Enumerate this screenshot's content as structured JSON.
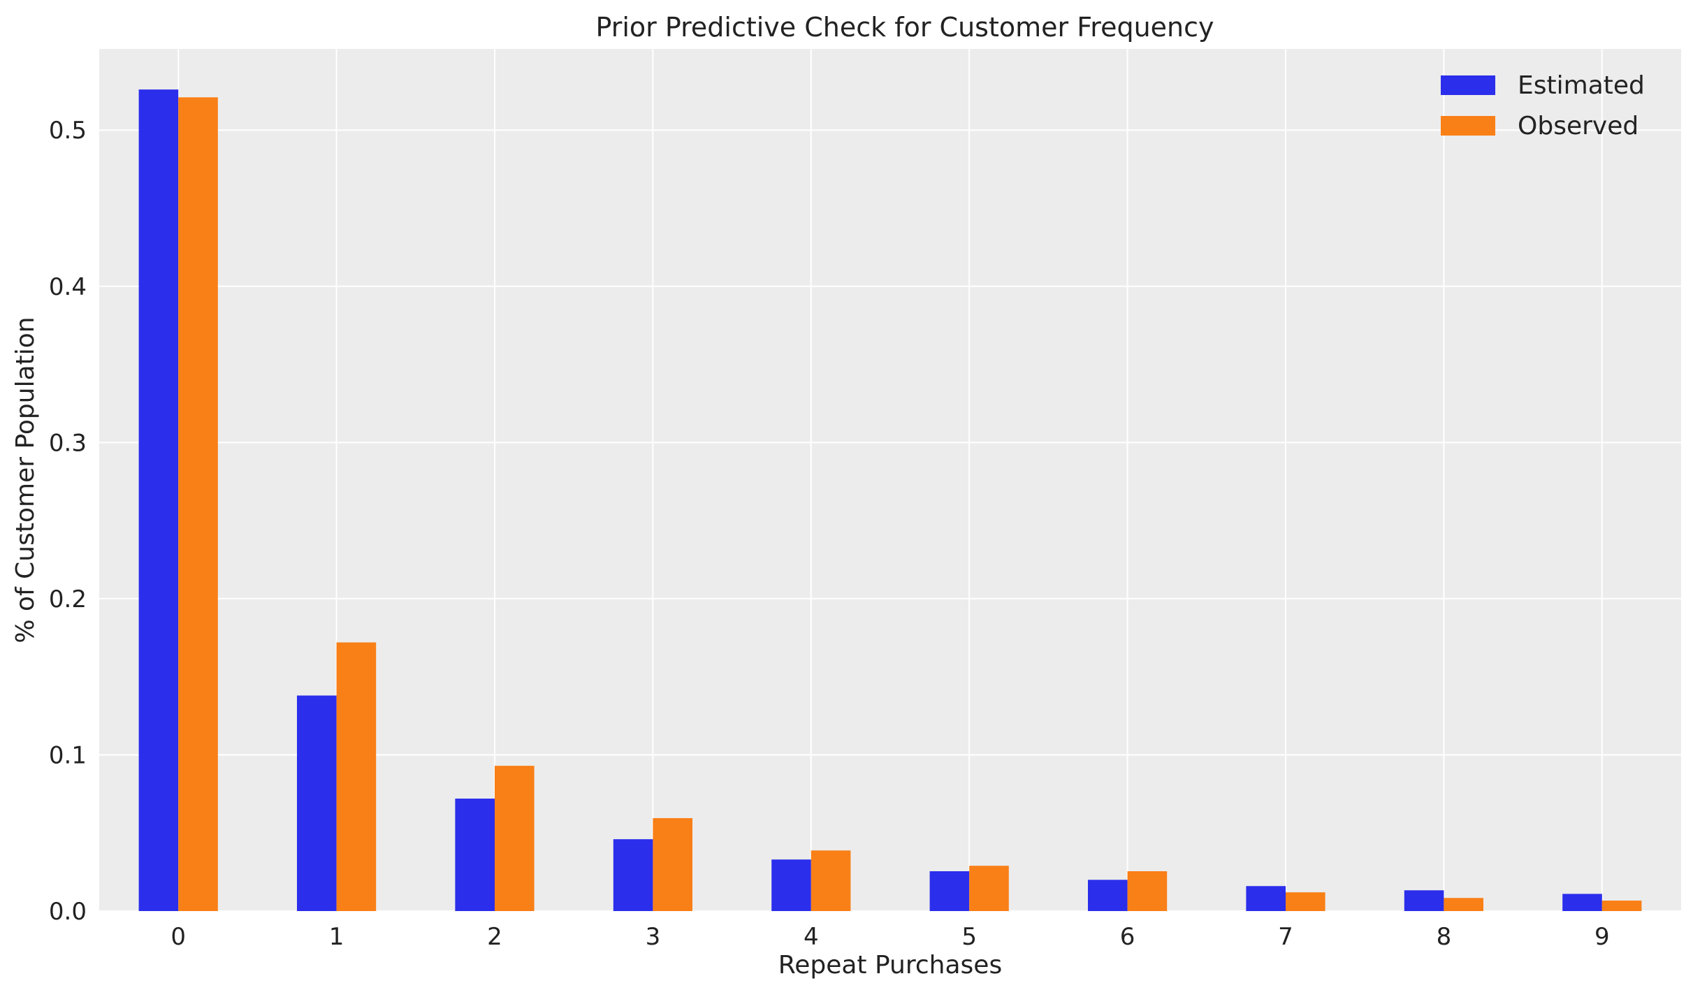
{
  "chart_data": {
    "type": "bar",
    "title": "Prior Predictive Check for Customer Frequency",
    "xlabel": "Repeat Purchases",
    "ylabel": "% of Customer Population",
    "categories": [
      "0",
      "1",
      "2",
      "3",
      "4",
      "5",
      "6",
      "7",
      "8",
      "9"
    ],
    "series": [
      {
        "name": "Estimated",
        "color": "#2b2eeb",
        "values": [
          0.526,
          0.138,
          0.072,
          0.046,
          0.033,
          0.0255,
          0.02,
          0.016,
          0.0133,
          0.011
        ]
      },
      {
        "name": "Observed",
        "color": "#f97f17",
        "values": [
          0.521,
          0.172,
          0.093,
          0.0595,
          0.0388,
          0.029,
          0.0255,
          0.012,
          0.0084,
          0.0067
        ]
      }
    ],
    "yticks": [
      "0.0",
      "0.1",
      "0.2",
      "0.3",
      "0.4",
      "0.5"
    ],
    "ylim": [
      0,
      0.552
    ],
    "xlim": [
      -0.5,
      9.5
    ],
    "grid": true,
    "background": "#ececec",
    "legend_position": "top-right"
  }
}
